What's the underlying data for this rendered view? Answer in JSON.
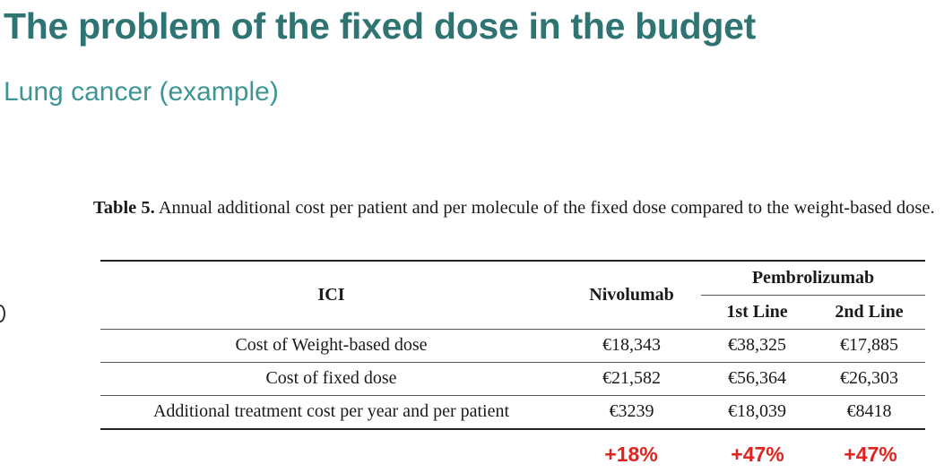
{
  "slide": {
    "title": "The problem of the fixed dose in the budget",
    "subtitle": "Lung cancer (example)"
  },
  "caption": {
    "label": "Table 5.",
    "text": "Annual additional cost per patient and per molecule of the fixed dose compared to the weight-based dose."
  },
  "table": {
    "header": {
      "ici": "ICI",
      "nivolumab": "Nivolumab",
      "pembrolizumab": "Pembrolizumab",
      "line1": "1st Line",
      "line2": "2nd Line"
    },
    "rows": [
      {
        "label": "Cost of Weight-based dose",
        "nivolumab": "€18,343",
        "pembro_1st": "€38,325",
        "pembro_2nd": "€17,885"
      },
      {
        "label": "Cost of fixed dose",
        "nivolumab": "€21,582",
        "pembro_1st": "€56,364",
        "pembro_2nd": "€26,303"
      },
      {
        "label": "Additional treatment cost per year and per patient",
        "nivolumab": "€3239",
        "pembro_1st": "€18,039",
        "pembro_2nd": "€8418"
      }
    ]
  },
  "increases": {
    "nivolumab": "+18%",
    "pembro_1st": "+47%",
    "pembro_2nd": "+47%"
  },
  "colors": {
    "title": "#2e7473",
    "subtitle": "#3f9595",
    "increase": "#e0231e"
  }
}
